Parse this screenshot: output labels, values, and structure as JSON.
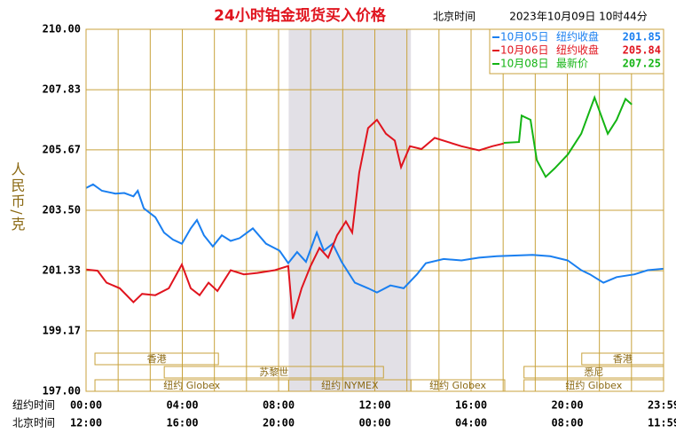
{
  "chart_data": {
    "type": "line",
    "title": "24小时铂金现货买入价格",
    "timezone_label": "北京时间",
    "timestamp": "2023年10月09日 10时44分",
    "ylabel": "人民币/克",
    "ylim": [
      197,
      210
    ],
    "yticks": [
      {
        "value": 210,
        "label": "210.00"
      },
      {
        "value": 207.83,
        "label": "207.83"
      },
      {
        "value": 205.67,
        "label": "205.67"
      },
      {
        "value": 203.5,
        "label": "203.50"
      },
      {
        "value": 201.33,
        "label": "201.33"
      },
      {
        "value": 199.17,
        "label": "199.17"
      },
      {
        "value": 197,
        "label": "197.00"
      }
    ],
    "xlim": [
      0,
      24
    ],
    "xrow_labels": [
      "纽约时间",
      "北京时间"
    ],
    "xticks": [
      {
        "value": 0,
        "label": "00:00"
      },
      {
        "value": 4,
        "label": "04:00"
      },
      {
        "value": 8,
        "label": "08:00"
      },
      {
        "value": 12,
        "label": "12:00"
      },
      {
        "value": 16,
        "label": "16:00"
      },
      {
        "value": 20,
        "label": "20:00"
      },
      {
        "value": 24,
        "label": "23:59"
      }
    ],
    "xticks_beijing": [
      "12:00",
      "16:00",
      "20:00",
      "00:00",
      "04:00",
      "08:00",
      "11:59"
    ],
    "grid": true,
    "highlight": [
      8.42,
      13.5
    ],
    "session_rows": [
      [
        {
          "label": "香港",
          "start": 0.37,
          "end": 5.5
        },
        {
          "label": "香港",
          "start": 20.6,
          "end": 24
        }
      ],
      [
        {
          "label": "苏黎世",
          "start": 3.25,
          "end": 12.36
        },
        {
          "label": "悉尼",
          "start": 18.2,
          "end": 24
        }
      ],
      [
        {
          "label": "纽约 Globex",
          "start": 0.37,
          "end": 8.42
        },
        {
          "label": "纽约 NYMEX",
          "start": 8.42,
          "end": 13.5
        },
        {
          "label": "纽约 Globex",
          "start": 13.5,
          "end": 17.4
        },
        {
          "label": "纽约 Globex",
          "start": 18.2,
          "end": 24
        }
      ]
    ],
    "series": [
      {
        "name": "10月05日",
        "legend_label": "纽约收盘",
        "legend_value": 201.85,
        "color": "#1a7ff0",
        "x": [
          0,
          0.29,
          0.66,
          1.22,
          1.59,
          1.97,
          2.15,
          2.4,
          2.88,
          3.24,
          3.61,
          3.98,
          4.35,
          4.61,
          4.9,
          5.27,
          5.64,
          6.01,
          6.38,
          6.93,
          7.48,
          8.04,
          8.4,
          8.77,
          9.14,
          9.59,
          9.88,
          10.25,
          10.62,
          11.17,
          11.72,
          12.09,
          12.65,
          13.2,
          13.75,
          14.12,
          14.86,
          15.6,
          16.33,
          17.07,
          18.55,
          19.29,
          20.02,
          20.58,
          20.94,
          21.5,
          22.05,
          22.79,
          23.34,
          24
        ],
        "values": [
          204.3,
          204.43,
          204.2,
          204.1,
          204.12,
          204.0,
          204.2,
          203.57,
          203.25,
          202.7,
          202.45,
          202.3,
          202.85,
          203.15,
          202.6,
          202.2,
          202.6,
          202.4,
          202.5,
          202.85,
          202.3,
          202.05,
          201.6,
          202.0,
          201.65,
          202.7,
          202.05,
          202.3,
          201.65,
          200.9,
          200.7,
          200.55,
          200.8,
          200.7,
          201.2,
          201.6,
          201.75,
          201.7,
          201.8,
          201.85,
          201.9,
          201.85,
          201.7,
          201.35,
          201.2,
          200.9,
          201.1,
          201.2,
          201.35,
          201.4
        ]
      },
      {
        "name": "10月06日",
        "legend_label": "纽约收盘",
        "legend_value": 205.84,
        "color": "#e0141e",
        "x": [
          0,
          0.48,
          0.85,
          1.4,
          1.97,
          2.33,
          2.88,
          3.44,
          3.98,
          4.35,
          4.72,
          5.09,
          5.46,
          6.01,
          6.56,
          7.12,
          7.85,
          8.4,
          8.59,
          8.96,
          9.33,
          9.7,
          10.06,
          10.43,
          10.8,
          11.06,
          11.35,
          11.72,
          12.09,
          12.46,
          12.83,
          13.09,
          13.46,
          13.94,
          14.49,
          15.04,
          15.6,
          16.33,
          16.88,
          17.36
        ],
        "values": [
          201.37,
          201.33,
          200.9,
          200.7,
          200.2,
          200.5,
          200.45,
          200.7,
          201.55,
          200.7,
          200.45,
          200.9,
          200.6,
          201.35,
          201.2,
          201.25,
          201.35,
          201.5,
          199.6,
          200.7,
          201.5,
          202.15,
          201.8,
          202.6,
          203.1,
          202.7,
          204.85,
          206.45,
          206.75,
          206.25,
          206.0,
          205.05,
          205.8,
          205.7,
          206.1,
          205.95,
          205.8,
          205.65,
          205.8,
          205.9
        ]
      },
      {
        "name": "10月08日",
        "legend_label": "最新价",
        "legend_value": 207.25,
        "color": "#14b414",
        "x": [
          17.36,
          17.99,
          18.1,
          18.47,
          18.73,
          19.1,
          19.47,
          20.02,
          20.58,
          21.13,
          21.68,
          22.05,
          22.42,
          22.68
        ],
        "values": [
          205.92,
          205.95,
          206.9,
          206.75,
          205.3,
          204.7,
          205.0,
          205.5,
          206.25,
          207.55,
          206.25,
          206.75,
          207.5,
          207.3
        ]
      }
    ]
  }
}
